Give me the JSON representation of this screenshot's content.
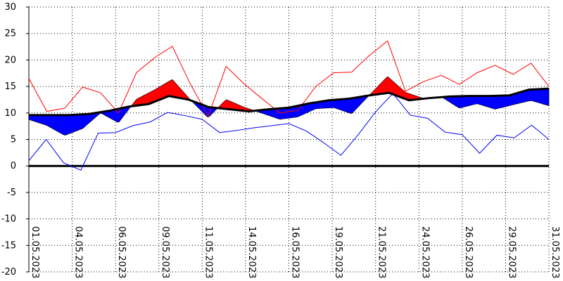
{
  "chart_data": {
    "type": "area",
    "title": "",
    "xlabel": "",
    "ylabel": "",
    "ylim": [
      -20,
      30
    ],
    "yticks": [
      30,
      25,
      20,
      15,
      10,
      5,
      0,
      -5,
      -10,
      -15,
      -20
    ],
    "grid": true,
    "x_tick_labels": [
      "01.05.2023",
      "04.05.2023",
      "06.05.2023",
      "09.05.2023",
      "11.05.2023",
      "14.05.2023",
      "16.05.2023",
      "19.05.2023",
      "21.05.2023",
      "24.05.2023",
      "26.05.2023",
      "29.05.2023",
      "31.05.2023"
    ],
    "x_tick_days": [
      1,
      3,
      5,
      7,
      9,
      11,
      13,
      15,
      17,
      19,
      21,
      23,
      25
    ],
    "x_range_days": [
      1,
      25
    ],
    "series": [
      {
        "color": "#000000",
        "values": [
          9.6,
          9.6,
          9.6,
          9.8,
          10.4,
          11.2,
          11.7,
          13.2,
          12.5,
          11.1,
          10.7,
          10.3,
          10.7,
          11.0,
          11.8,
          12.4,
          12.7,
          13.3,
          13.8,
          12.4,
          12.8,
          13.1,
          13.2,
          13.2,
          13.3,
          14.4,
          14.6
        ]
      },
      {
        "color": "#ff0000",
        "values": [
          16.5,
          10.3,
          10.9,
          14.9,
          13.8,
          10.0,
          17.6,
          20.4,
          22.6,
          15.5,
          9.4,
          18.8,
          15.5,
          12.7,
          10.0,
          10.5,
          15.0,
          17.6,
          17.7,
          20.9,
          23.6,
          14.1,
          15.9,
          17.1,
          15.4,
          17.6,
          19.0,
          17.3,
          19.4,
          15.0
        ]
      },
      {
        "color": "#0000ff",
        "values": [
          1.0,
          5.0,
          0.6,
          -0.8,
          6.2,
          6.3,
          7.6,
          8.3,
          10.1,
          9.5,
          8.8,
          6.3,
          6.7,
          7.2,
          7.6,
          8.0,
          6.6,
          4.4,
          2.0,
          5.9,
          10.2,
          13.7,
          9.6,
          9.0,
          6.4,
          5.9,
          2.4,
          5.8,
          5.3,
          7.7,
          5.0
        ]
      }
    ],
    "fill_above_color": "#ff0000",
    "fill_below_color": "#0000ff",
    "axis_zero_color": "#000000"
  }
}
